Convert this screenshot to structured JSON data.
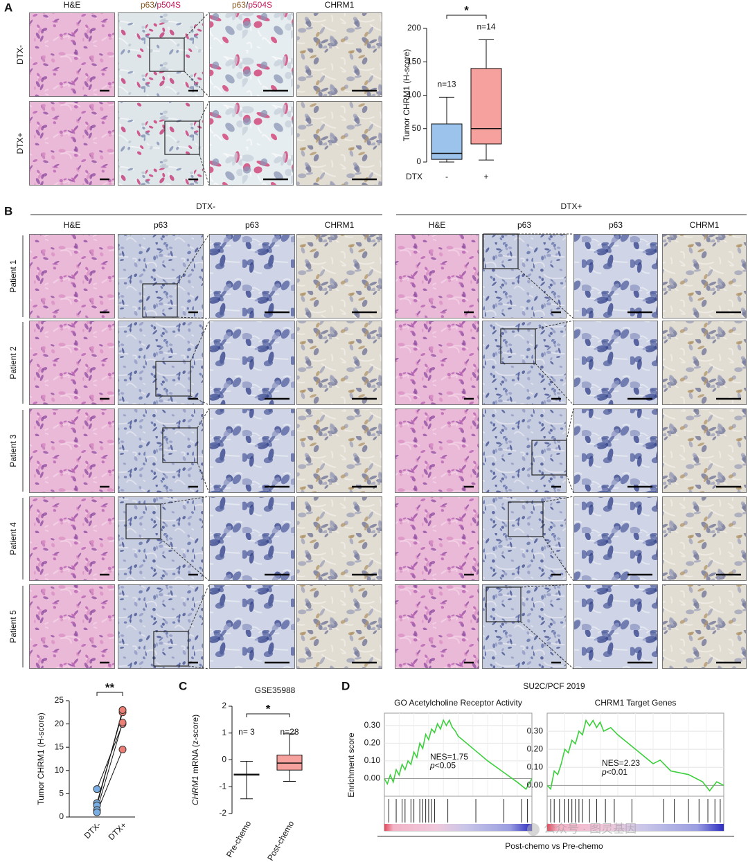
{
  "panel_a": {
    "label": "A",
    "columns": [
      [
        "H&E"
      ],
      [
        "p63",
        "/",
        "p504S"
      ],
      [
        "p63",
        "/",
        "p504S"
      ],
      [
        "CHRM1"
      ]
    ],
    "rows": [
      "DTX-",
      "DTX+"
    ]
  },
  "panel_b": {
    "label": "B",
    "groups": [
      "DTX-",
      "DTX+"
    ],
    "columns": [
      "H&E",
      "p63",
      "p63",
      "CHRM1"
    ],
    "rows": [
      "Patient 1",
      "Patient 2",
      "Patient 3",
      "Patient 4",
      "Patient 5"
    ]
  },
  "panel_c": {
    "label": "C"
  },
  "panel_d": {
    "label": "D",
    "title": "SU2C/PCF 2019",
    "xlabel": "Post-chemo vs Pre-chemo"
  },
  "watermark": "公众号 · 图灵基因",
  "chart_data": [
    {
      "type": "box",
      "ylabel": "Tumor CHRM1 (H-score)",
      "xlabel": "DTX",
      "categories": [
        "-",
        "+"
      ],
      "boxes": [
        {
          "min": 0,
          "q1": 4,
          "median": 13,
          "q3": 57,
          "max": 97,
          "color": "#9cc3ec"
        },
        {
          "min": 3,
          "q1": 27,
          "median": 50,
          "q3": 140,
          "max": 183,
          "color": "#f6a19d"
        }
      ],
      "n_labels": [
        "n=13",
        "n=14"
      ],
      "significance": "*",
      "ylim": [
        0,
        200
      ],
      "yticks": [
        0,
        50,
        100,
        150,
        200
      ]
    },
    {
      "type": "paired",
      "ylabel": "Tumor CHRM1 (H-score)",
      "categories": [
        "DTX-",
        "DTX+"
      ],
      "colors": [
        "#78aee4",
        "#ec7f75"
      ],
      "series": [
        {
          "values": [
            6,
            20
          ]
        },
        {
          "values": [
            3,
            22.5
          ]
        },
        {
          "values": [
            2.5,
            23
          ]
        },
        {
          "values": [
            1.5,
            20.3
          ]
        },
        {
          "values": [
            1,
            14.5
          ]
        }
      ],
      "significance": "**",
      "ylim": [
        0,
        25
      ],
      "yticks": [
        0,
        5,
        10,
        15,
        20,
        25
      ]
    },
    {
      "type": "box",
      "title": "GSE35988",
      "ylabel": [
        "CHRM1",
        " mRNA (z-score)"
      ],
      "categories": [
        "Pre-chemo",
        "Post-chemo"
      ],
      "boxes": [
        {
          "min": -1.45,
          "q1": -0.57,
          "median": -0.55,
          "q3": -0.53,
          "max": -0.05,
          "color": "#ffffff"
        },
        {
          "min": -0.8,
          "q1": -0.38,
          "median": -0.12,
          "q3": 0.18,
          "max": 0.97,
          "color": "#f6a19d"
        }
      ],
      "n_labels": [
        "n= 3",
        "n=28"
      ],
      "significance": "*",
      "ylim": [
        -2,
        2
      ],
      "yticks": [
        -2,
        -1,
        0,
        1,
        2
      ]
    },
    {
      "type": "gsea",
      "title": "GO Acetylcholine Receptor Activity",
      "ylabel": "Enrichment score",
      "color": "#3ccf3c",
      "grid": true,
      "x": [
        0,
        2,
        4,
        6,
        8,
        10,
        12,
        14,
        16,
        18,
        20,
        22,
        24,
        26,
        28,
        30,
        32,
        34,
        36,
        38,
        40,
        42,
        44,
        46,
        48,
        50,
        60,
        70,
        80,
        90,
        96,
        98,
        100
      ],
      "values": [
        0,
        -0.03,
        0.02,
        -0.02,
        0.05,
        0.02,
        0.08,
        0.05,
        0.1,
        0.08,
        0.15,
        0.12,
        0.2,
        0.17,
        0.25,
        0.22,
        0.28,
        0.26,
        0.31,
        0.28,
        0.33,
        0.3,
        0.33,
        0.29,
        0.27,
        0.24,
        0.17,
        0.1,
        0.04,
        -0.02,
        -0.06,
        -0.03,
        0.0
      ],
      "hits": [
        3,
        8,
        12,
        14,
        18,
        20,
        24,
        26,
        28,
        30,
        32,
        34,
        43,
        62,
        81,
        93,
        97
      ],
      "nes": "NES=1.75",
      "pval": [
        "p",
        "<0.05"
      ],
      "xlim": [
        0,
        100
      ],
      "ylim": [
        -0.1,
        0.37
      ],
      "yticks": [
        {
          "value": 0,
          "label": "0.00"
        },
        {
          "value": 0.1,
          "label": "0.10"
        },
        {
          "value": 0.2,
          "label": "0.20"
        },
        {
          "value": 0.3,
          "label": "0.30"
        }
      ]
    },
    {
      "type": "gsea",
      "title": "CHRM1 Target Genes",
      "color": "#3ccf3c",
      "grid": true,
      "x": [
        0,
        2,
        4,
        6,
        8,
        10,
        12,
        14,
        16,
        18,
        20,
        22,
        24,
        26,
        28,
        30,
        32,
        36,
        40,
        50,
        60,
        64,
        70,
        80,
        88,
        92,
        96,
        100
      ],
      "values": [
        0,
        -0.02,
        0.08,
        0.06,
        0.12,
        0.2,
        0.18,
        0.25,
        0.23,
        0.3,
        0.28,
        0.36,
        0.33,
        0.36,
        0.32,
        0.35,
        0.3,
        0.32,
        0.28,
        0.2,
        0.12,
        0.14,
        0.08,
        0.06,
        0.02,
        -0.03,
        0.02,
        0.0
      ],
      "hits": [
        2,
        4,
        7,
        10,
        12,
        14,
        16,
        18,
        20,
        24,
        28,
        33,
        38,
        48,
        66,
        72,
        80,
        86,
        91,
        95,
        98
      ],
      "nes": "NES=2.23",
      "pval": [
        "p",
        "<0.01"
      ],
      "xlim": [
        0,
        100
      ],
      "ylim": [
        -0.06,
        0.4
      ],
      "yticks": [
        {
          "value": 0,
          "label": "0.00"
        },
        {
          "value": 0.1,
          "label": "0.10"
        },
        {
          "value": 0.2,
          "label": "0.20"
        },
        {
          "value": 0.3,
          "label": "0.30"
        }
      ]
    }
  ]
}
